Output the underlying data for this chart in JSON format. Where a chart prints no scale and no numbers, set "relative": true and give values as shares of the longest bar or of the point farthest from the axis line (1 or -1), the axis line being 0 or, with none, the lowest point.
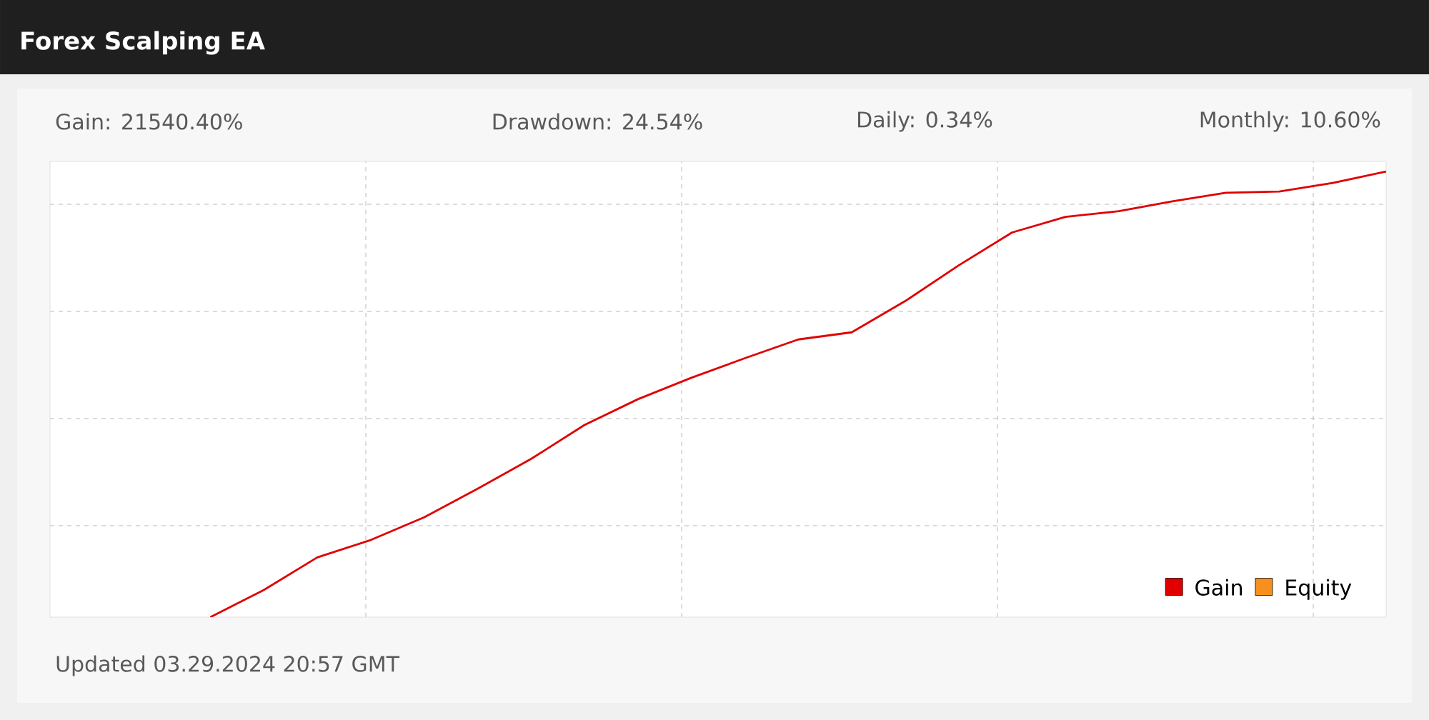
{
  "chart_data": {
    "type": "line",
    "title": "Forex Scalping EA",
    "relative": true,
    "annotations": [
      "Gain: 21540.40%",
      "Drawdown: 24.54%",
      "Daily: 0.34%",
      "Monthly: 10.60%",
      "Updated 03.29.2024 20:57 GMT"
    ],
    "categories": [
      null,
      null,
      null,
      null,
      null,
      null,
      null,
      null,
      null,
      null,
      null,
      null,
      null,
      null,
      null,
      null,
      null,
      null,
      null,
      null,
      null,
      null,
      null,
      null,
      null,
      null
    ],
    "series": [
      {
        "name": "Gain",
        "color": "#e00000",
        "values": [
          null,
          null,
          null,
          0,
          0.061,
          0.134,
          0.173,
          0.224,
          0.288,
          0.355,
          0.431,
          0.489,
          0.537,
          0.581,
          0.623,
          0.639,
          0.709,
          0.789,
          0.863,
          0.898,
          0.911,
          0.933,
          0.952,
          0.955,
          0.974,
          1
        ]
      },
      {
        "name": "Equity",
        "color": "#f7901e",
        "values": [
          null,
          null,
          null,
          null,
          null,
          null,
          null,
          null,
          null,
          null,
          null,
          null,
          null,
          null,
          null,
          null,
          null,
          null,
          null,
          null,
          null,
          null,
          null,
          null,
          null,
          null
        ]
      }
    ],
    "grid": true,
    "legend": "bottom right",
    "line_style": "solid",
    "marker": "none"
  }
}
